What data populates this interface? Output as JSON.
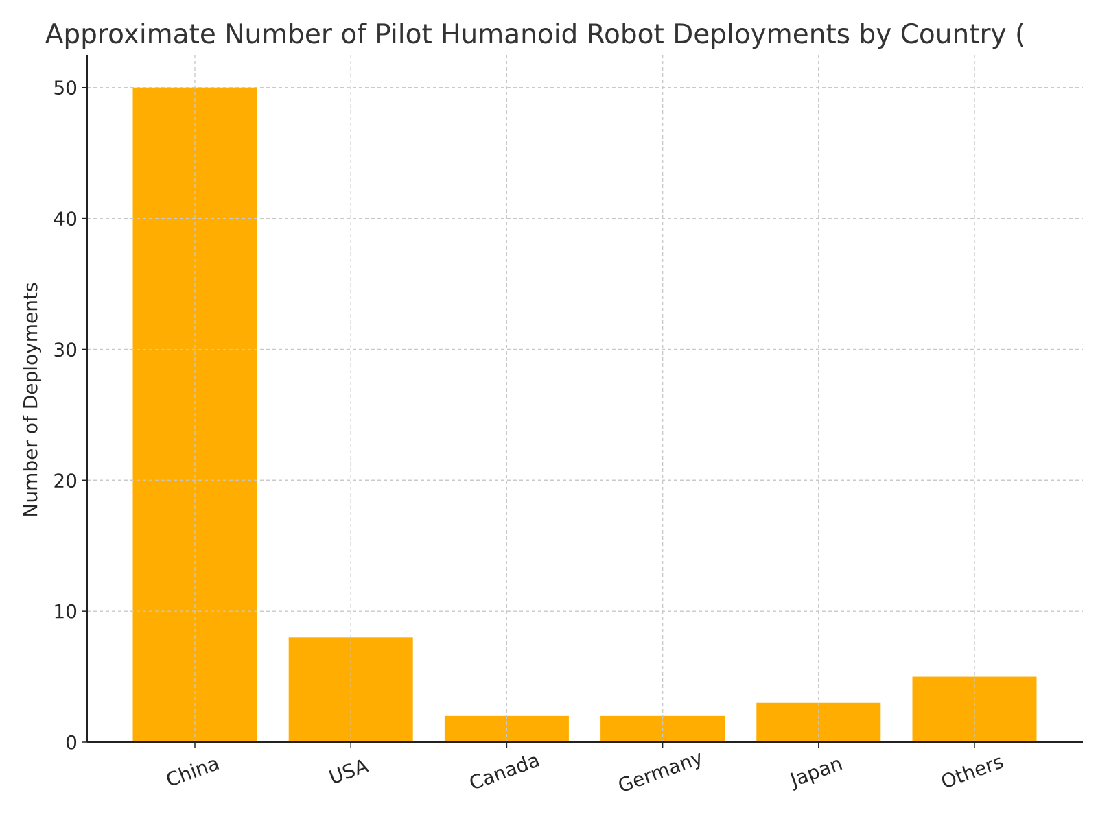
{
  "chart_data": {
    "type": "bar",
    "title": "Approximate Number of Pilot Humanoid Robot Deployments by Country (",
    "xlabel": "",
    "ylabel": "Number of Deployments",
    "categories": [
      "China",
      "USA",
      "Canada",
      "Germany",
      "Japan",
      "Others"
    ],
    "values": [
      50,
      8,
      2,
      2,
      3,
      5
    ],
    "ylim": [
      0,
      52.5
    ],
    "yticks": [
      0,
      10,
      20,
      30,
      40,
      50
    ],
    "grid": true,
    "bar_color": "#ffad00",
    "legend": "none"
  }
}
